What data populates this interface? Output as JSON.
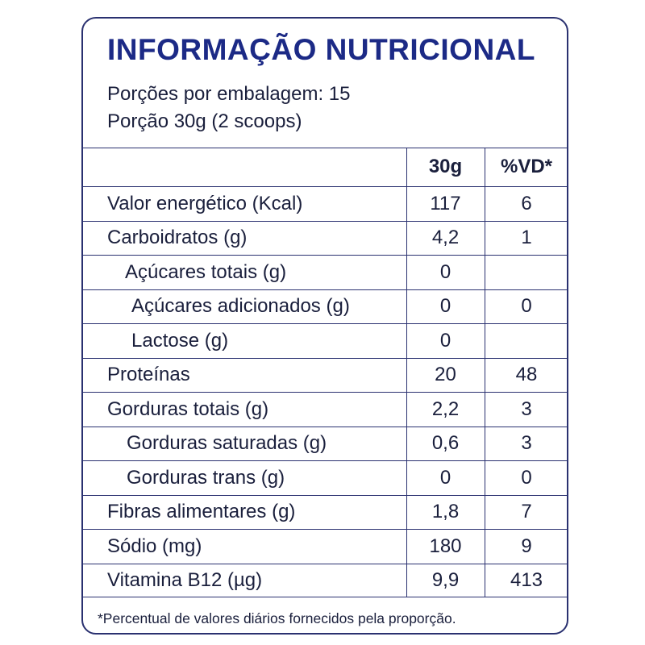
{
  "label": {
    "title": "INFORMAÇÃO NUTRICIONAL",
    "servings_per_package": "Porções por embalagem: 15",
    "serving_size": "Porção 30g (2 scoops)",
    "columns": {
      "amount": "30g",
      "daily_value": "%VD*"
    },
    "rows": [
      {
        "name": "Valor energético (Kcal)",
        "amount": "117",
        "daily_value": "6"
      },
      {
        "name": "Carboidratos (g)",
        "amount": "4,2",
        "daily_value": "1"
      },
      {
        "name": "Açúcares totais (g)",
        "amount": "0",
        "daily_value": ""
      },
      {
        "name": "Açúcares adicionados (g)",
        "amount": "0",
        "daily_value": "0"
      },
      {
        "name": "Lactose (g)",
        "amount": "0",
        "daily_value": ""
      },
      {
        "name": "Proteínas",
        "amount": "20",
        "daily_value": "48"
      },
      {
        "name": "Gorduras totais (g)",
        "amount": "2,2",
        "daily_value": "3"
      },
      {
        "name": "Gorduras saturadas (g)",
        "amount": "0,6",
        "daily_value": "3"
      },
      {
        "name": "Gorduras trans (g)",
        "amount": "0",
        "daily_value": "0"
      },
      {
        "name": "Fibras alimentares (g)",
        "amount": "1,8",
        "daily_value": "7"
      },
      {
        "name": "Sódio (mg)",
        "amount": "180",
        "daily_value": "9"
      },
      {
        "name": "Vitamina B12 (µg)",
        "amount": "9,9",
        "daily_value": "413"
      }
    ],
    "footnote": "*Percentual de valores diários fornecidos pela proporção."
  }
}
